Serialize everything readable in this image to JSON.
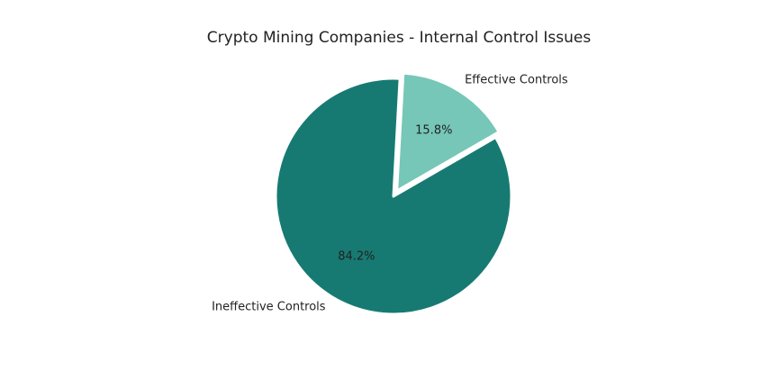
{
  "chart_data": {
    "type": "pie",
    "title": "Crypto Mining Companies - Internal Control Issues",
    "categories": [
      "Effective Controls",
      "Ineffective Controls"
    ],
    "values": [
      15.8,
      84.2
    ],
    "percent_labels": [
      "15.8%",
      "84.2%"
    ],
    "colors": [
      "#76c7b8",
      "#177a72"
    ],
    "exploded": [
      true,
      false
    ],
    "start_angle_deg": 30,
    "direction": "counterclockwise",
    "legend": "none"
  }
}
